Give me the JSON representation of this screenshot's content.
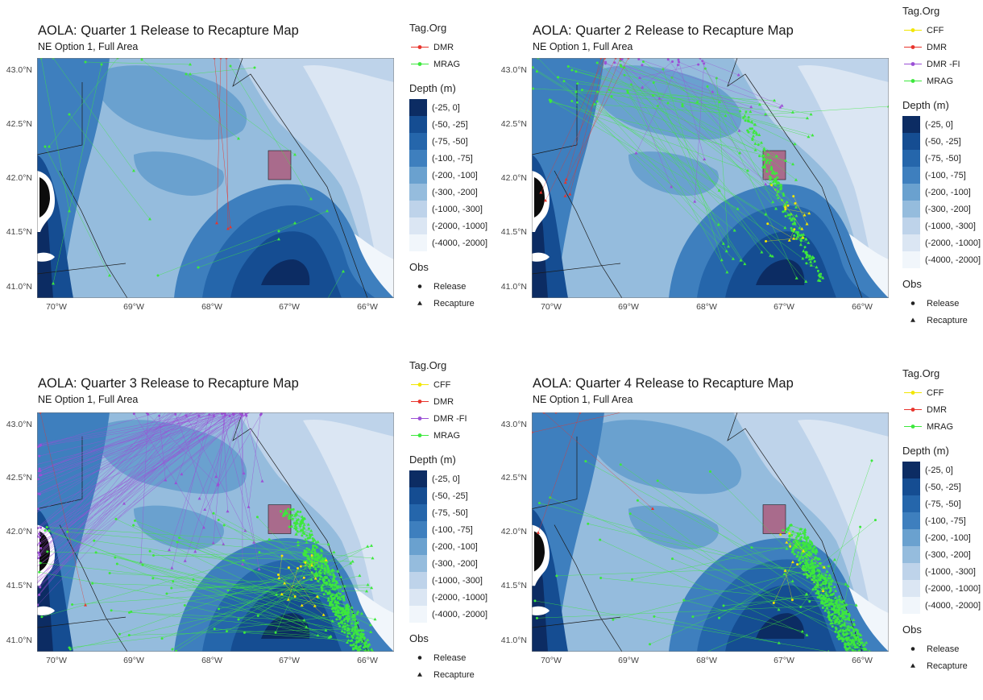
{
  "panels": [
    {
      "title": "AOLA: Quarter 1 Release to Recapture Map",
      "subtitle": "NE Option 1, Full Area",
      "tag_legend_title": "Tag.Org",
      "tag_orgs": [
        {
          "label": "DMR",
          "color": "#e8342c"
        },
        {
          "label": "MRAG",
          "color": "#3de83d"
        }
      ],
      "depth_title": "Depth (m)",
      "obs_title": "Obs",
      "obs_items": [
        "Release",
        "Recapture"
      ]
    },
    {
      "title": "AOLA: Quarter 2 Release to Recapture Map",
      "subtitle": "NE Option 1, Full Area",
      "tag_legend_title": "Tag.Org",
      "tag_orgs": [
        {
          "label": "CFF",
          "color": "#f2e600"
        },
        {
          "label": "DMR",
          "color": "#e8342c"
        },
        {
          "label": "DMR -FI",
          "color": "#9b4fd6"
        },
        {
          "label": "MRAG",
          "color": "#3de83d"
        }
      ],
      "depth_title": "Depth (m)",
      "obs_title": "Obs",
      "obs_items": [
        "Release",
        "Recapture"
      ]
    },
    {
      "title": "AOLA: Quarter 3 Release to Recapture Map",
      "subtitle": "NE Option 1, Full Area",
      "tag_legend_title": "Tag.Org",
      "tag_orgs": [
        {
          "label": "CFF",
          "color": "#f2e600"
        },
        {
          "label": "DMR",
          "color": "#e8342c"
        },
        {
          "label": "DMR -FI",
          "color": "#9b4fd6"
        },
        {
          "label": "MRAG",
          "color": "#3de83d"
        }
      ],
      "depth_title": "Depth (m)",
      "obs_title": "Obs",
      "obs_items": [
        "Release",
        "Recapture"
      ]
    },
    {
      "title": "AOLA: Quarter 4 Release to Recapture Map",
      "subtitle": "NE Option 1, Full Area",
      "tag_legend_title": "Tag.Org",
      "tag_orgs": [
        {
          "label": "CFF",
          "color": "#f2e600"
        },
        {
          "label": "DMR",
          "color": "#e8342c"
        },
        {
          "label": "MRAG",
          "color": "#3de83d"
        }
      ],
      "depth_title": "Depth (m)",
      "obs_title": "Obs",
      "obs_items": [
        "Release",
        "Recapture"
      ]
    }
  ],
  "depth_bins": [
    {
      "label": "(-25, 0]",
      "color": "#0c2c63"
    },
    {
      "label": "(-50, -25]",
      "color": "#154d92"
    },
    {
      "label": "(-75, -50]",
      "color": "#2566ab"
    },
    {
      "label": "(-100, -75]",
      "color": "#3e7fbe"
    },
    {
      "label": "(-200, -100]",
      "color": "#6aa1cf"
    },
    {
      "label": "(-300, -200]",
      "color": "#95bcdd"
    },
    {
      "label": "(-1000, -300]",
      "color": "#bed3ea"
    },
    {
      "label": "(-2000, -1000]",
      "color": "#dbe6f3"
    },
    {
      "label": "(-4000, -2000]",
      "color": "#f1f6fb"
    }
  ],
  "axes": {
    "y_ticks": [
      "43.0°N",
      "42.5°N",
      "42.0°N",
      "41.5°N",
      "41.0°N"
    ],
    "x_ticks": [
      "70°W",
      "69°W",
      "68°W",
      "67°W",
      "66°W"
    ],
    "lat_range": [
      40.9,
      43.1
    ],
    "lon_range": [
      -70.25,
      -65.85
    ]
  },
  "colors": {
    "land": "#ffffff",
    "boundary": "#1a1a1a",
    "closure_box": "#b05070"
  }
}
